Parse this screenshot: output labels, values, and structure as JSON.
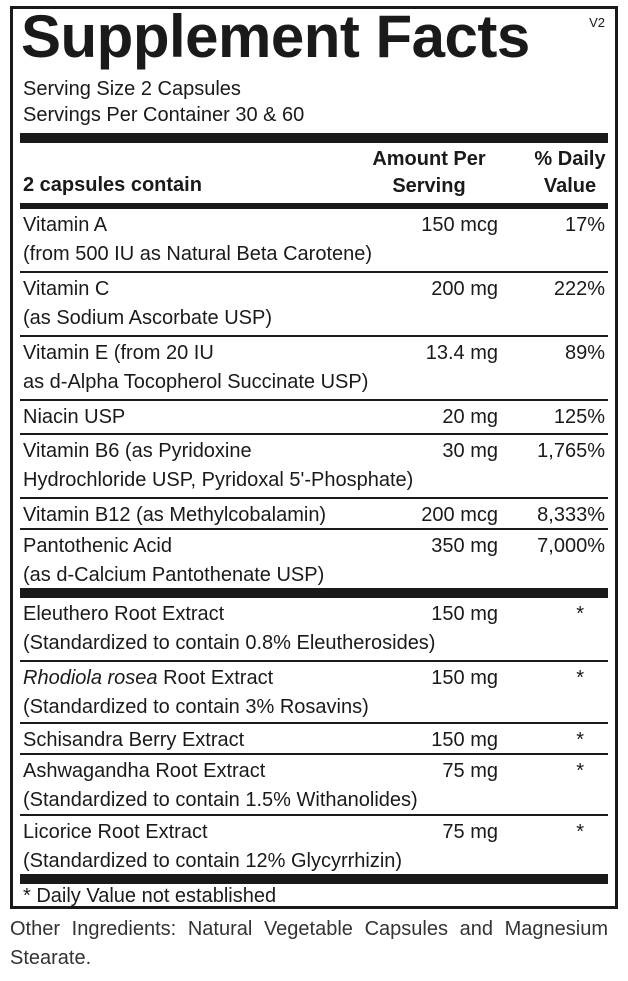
{
  "title": "Supplement Facts",
  "version": "V2",
  "serving_size": "Serving Size  2 Capsules",
  "servings_per_container": "Servings Per Container  30 & 60",
  "header": {
    "label": "2 capsules contain",
    "amount_line1": "Amount Per",
    "amount_line2": "Serving",
    "dv_line1": "% Daily",
    "dv_line2": "Value"
  },
  "vitamins": [
    {
      "name1": "Vitamin A",
      "name2": "(from 500 IU as Natural Beta Carotene)",
      "amount": "150 mcg",
      "dv": "17%"
    },
    {
      "name1": "Vitamin C",
      "name2": "(as Sodium Ascorbate USP)",
      "amount": "200 mg",
      "dv": "222%"
    },
    {
      "name1": "Vitamin E (from 20 IU",
      "name2": "as d-Alpha Tocopherol Succinate USP)",
      "amount": "13.4 mg",
      "dv": "89%"
    },
    {
      "name1": "Niacin USP",
      "amount": "20 mg",
      "dv": "125%"
    },
    {
      "name1": "Vitamin B6 (as Pyridoxine",
      "name2": "Hydrochloride USP, Pyridoxal 5'-Phosphate)",
      "amount": "30 mg",
      "dv": "1,765%"
    },
    {
      "name1": "Vitamin B12 (as Methylcobalamin)",
      "amount": "200 mcg",
      "dv": "8,333%"
    },
    {
      "name1": "Pantothenic Acid",
      "name2": "(as d-Calcium Pantothenate USP)",
      "amount": "350 mg",
      "dv": "7,000%"
    }
  ],
  "extracts": [
    {
      "name1": "Eleuthero Root Extract",
      "name2": "(Standardized to contain 0.8% Eleutherosides)",
      "amount": "150 mg",
      "dv": "*"
    },
    {
      "name_italic": "Rhodiola rosea",
      "name1_rest": " Root Extract",
      "name2": "(Standardized to contain 3% Rosavins)",
      "amount": "150 mg",
      "dv": "*"
    },
    {
      "name1": "Schisandra Berry Extract",
      "amount": "150 mg",
      "dv": "*"
    },
    {
      "name1": "Ashwagandha Root Extract",
      "name2": "(Standardized to contain 1.5% Withanolides)",
      "amount": "75 mg",
      "dv": "*"
    },
    {
      "name1": "Licorice Root Extract",
      "name2": "(Standardized to contain 12% Glycyrrhizin)",
      "amount": "75 mg",
      "dv": "*"
    }
  ],
  "footnote": "* Daily Value not established",
  "other_ingredients": "Other Ingredients: Natural Vegetable Capsules and Magnesium Stearate."
}
